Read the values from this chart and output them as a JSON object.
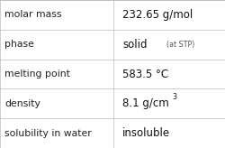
{
  "rows": [
    {
      "label": "molar mass",
      "value": "232.65 g/mol",
      "superscript": null,
      "at_stp": false
    },
    {
      "label": "phase",
      "value": "solid",
      "superscript": null,
      "at_stp": true
    },
    {
      "label": "melting point",
      "value": "583.5 °C",
      "superscript": null,
      "at_stp": false
    },
    {
      "label": "density",
      "value": "8.1 g/cm",
      "superscript": "3",
      "at_stp": false
    },
    {
      "label": "solubility in water",
      "value": "insoluble",
      "superscript": null,
      "at_stp": false
    }
  ],
  "col_split": 0.505,
  "background_color": "#ffffff",
  "line_color": "#bbbbbb",
  "label_fontsize": 7.8,
  "value_fontsize": 8.5,
  "label_color": "#222222",
  "value_color": "#111111",
  "stp_fontsize": 5.8,
  "sup_fontsize": 5.8,
  "stp_color": "#555555"
}
